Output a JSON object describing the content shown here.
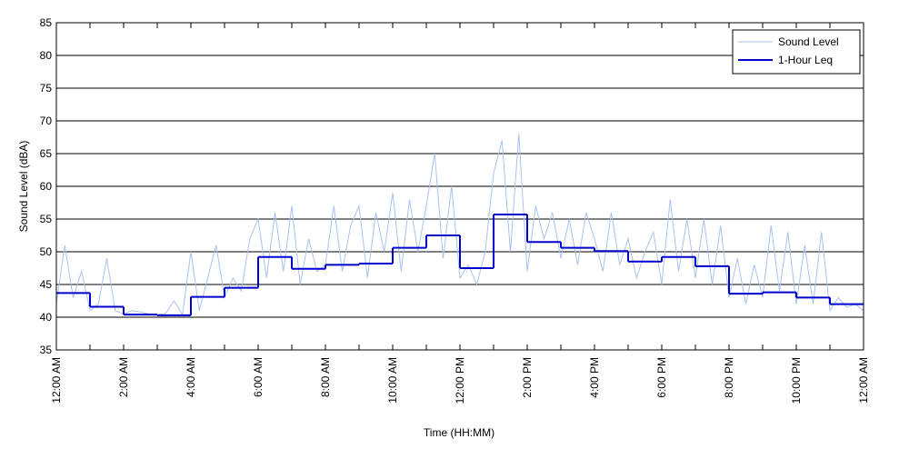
{
  "chart_data": {
    "type": "line",
    "x_label": "Time (HH:MM)",
    "y_label": "Sound Level (dBA)",
    "xlim": [
      0,
      24
    ],
    "ylim": [
      35,
      85
    ],
    "xticks": [
      {
        "value": 0,
        "label": "12:00 AM"
      },
      {
        "value": 2,
        "label": "2:00 AM"
      },
      {
        "value": 4,
        "label": "4:00 AM"
      },
      {
        "value": 6,
        "label": "6:00 AM"
      },
      {
        "value": 8,
        "label": "8:00 AM"
      },
      {
        "value": 10,
        "label": "10:00 AM"
      },
      {
        "value": 12,
        "label": "12:00 PM"
      },
      {
        "value": 14,
        "label": "2:00 PM"
      },
      {
        "value": 16,
        "label": "4:00 PM"
      },
      {
        "value": 18,
        "label": "6:00 PM"
      },
      {
        "value": 20,
        "label": "8:00 PM"
      },
      {
        "value": 22,
        "label": "10:00 PM"
      },
      {
        "value": 24,
        "label": "12:00 AM"
      }
    ],
    "xminorticks": [
      1,
      3,
      5,
      7,
      9,
      11,
      13,
      15,
      17,
      19,
      21,
      23
    ],
    "yticks": [
      35,
      40,
      45,
      50,
      55,
      60,
      65,
      70,
      75,
      80,
      85
    ],
    "grid": "y",
    "legend": "top-right",
    "series": [
      {
        "name": "Sound Level",
        "color": "#a8c2f0",
        "step": false,
        "x": [
          0,
          0.25,
          0.5,
          0.75,
          1,
          1.25,
          1.5,
          1.75,
          2,
          2.25,
          2.5,
          2.75,
          3,
          3.25,
          3.5,
          3.75,
          4,
          4.25,
          4.5,
          4.75,
          5,
          5.25,
          5.5,
          5.75,
          6,
          6.25,
          6.5,
          6.75,
          7,
          7.25,
          7.5,
          7.75,
          8,
          8.25,
          8.5,
          8.75,
          9,
          9.25,
          9.5,
          9.75,
          10,
          10.25,
          10.5,
          10.75,
          11,
          11.25,
          11.5,
          11.75,
          12,
          12.25,
          12.5,
          12.75,
          13,
          13.25,
          13.5,
          13.75,
          14,
          14.25,
          14.5,
          14.75,
          15,
          15.25,
          15.5,
          15.75,
          16,
          16.25,
          16.5,
          16.75,
          17,
          17.25,
          17.5,
          17.75,
          18,
          18.25,
          18.5,
          18.75,
          19,
          19.25,
          19.5,
          19.75,
          20,
          20.25,
          20.5,
          20.75,
          21,
          21.25,
          21.5,
          21.75,
          22,
          22.25,
          22.5,
          22.75,
          23,
          23.25,
          23.5,
          23.75,
          24
        ],
        "values": [
          42,
          51,
          43,
          47,
          41,
          42,
          49,
          41,
          40.5,
          41,
          40.8,
          40.5,
          40.3,
          40.6,
          42.5,
          40.4,
          50,
          41,
          46,
          51,
          43,
          46,
          44,
          52,
          55,
          46,
          56,
          47,
          57,
          45,
          52,
          47,
          48,
          57,
          47,
          54,
          57,
          46,
          56,
          50,
          59,
          47,
          58,
          50,
          57,
          65,
          49,
          60,
          46,
          48,
          45,
          50,
          62,
          67,
          50,
          68,
          47,
          57,
          52,
          56,
          49,
          55,
          48,
          56,
          52,
          47,
          56,
          48,
          52,
          46,
          50,
          53,
          45,
          58,
          47,
          55,
          46,
          55,
          45,
          54,
          43,
          49,
          42,
          48,
          43,
          54,
          44,
          53,
          42,
          51,
          42,
          53,
          41,
          43,
          41.5,
          42,
          41
        ]
      },
      {
        "name": "1-Hour Leq",
        "color": "#0000cc",
        "step": true,
        "x": [
          0,
          1,
          2,
          3,
          4,
          5,
          6,
          7,
          8,
          9,
          10,
          11,
          12,
          13,
          14,
          15,
          16,
          17,
          18,
          19,
          20,
          21,
          22,
          23
        ],
        "values": [
          43.7,
          41.6,
          40.4,
          40.3,
          43.1,
          44.5,
          49.2,
          47.4,
          48.0,
          48.2,
          50.6,
          52.5,
          47.5,
          55.7,
          51.5,
          50.6,
          50.1,
          48.5,
          49.2,
          47.8,
          43.6,
          43.8,
          43.0,
          42.0
        ]
      }
    ]
  }
}
